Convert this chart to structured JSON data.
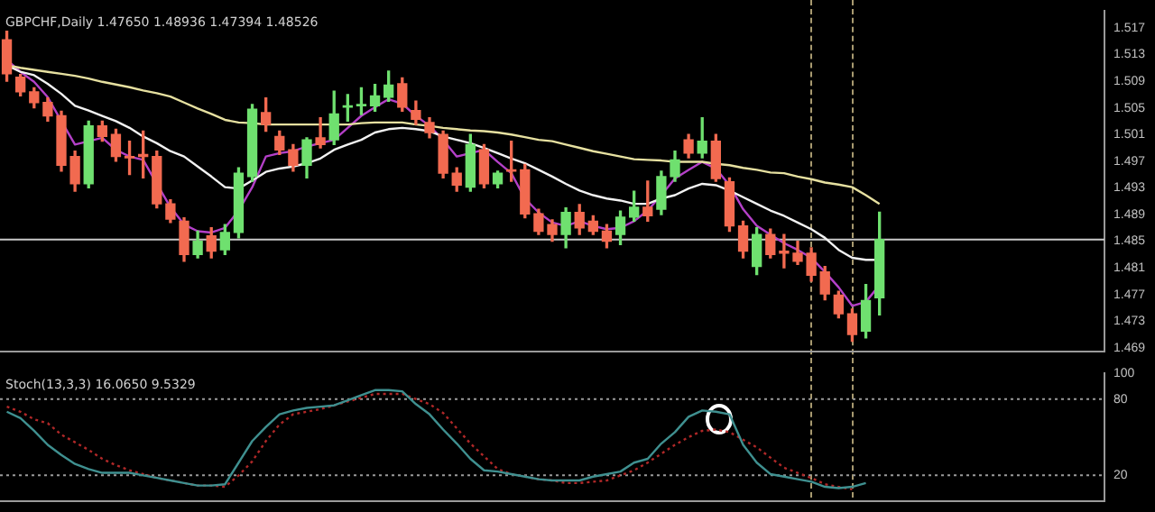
{
  "chart_data": [
    {
      "type": "candlestick",
      "title": "GBPCHF,Daily 1.47650 1.48936 1.47394 1.48526",
      "categories": [
        null,
        null,
        null,
        null,
        null,
        null,
        null,
        null,
        null,
        null,
        null,
        null,
        null,
        null,
        null,
        null,
        null,
        null,
        null,
        null,
        null,
        null,
        null,
        null,
        null,
        null,
        null,
        null,
        null,
        null,
        null,
        null,
        null,
        null,
        null,
        null,
        null,
        null,
        null,
        null,
        null,
        null,
        null,
        null,
        null,
        null,
        null,
        null,
        null,
        null,
        null,
        null,
        null,
        null,
        null,
        null,
        null,
        null,
        null,
        null,
        null,
        null,
        null,
        null,
        null,
        null,
        null,
        null,
        null,
        null,
        null,
        null,
        null,
        null,
        null,
        null,
        null,
        null,
        null,
        null,
        null
      ],
      "ohlc": [
        [
          1.5152,
          1.5165,
          1.509,
          1.5101
        ],
        [
          1.5096,
          1.51,
          1.5068,
          1.5074
        ],
        [
          1.5074,
          1.508,
          1.505,
          1.5058
        ],
        [
          1.5058,
          1.5065,
          1.503,
          1.5038
        ],
        [
          1.5038,
          1.5045,
          1.4955,
          1.4964
        ],
        [
          1.4977,
          1.4985,
          1.4925,
          1.4936
        ],
        [
          1.4936,
          1.503,
          1.493,
          1.5023
        ],
        [
          1.5023,
          1.503,
          1.5,
          1.5007
        ],
        [
          1.501,
          1.5018,
          1.497,
          1.4977
        ],
        [
          1.4977,
          1.5,
          1.495,
          1.4975
        ],
        [
          1.498,
          1.5015,
          1.4945,
          1.4977
        ],
        [
          1.4977,
          1.4985,
          1.49,
          1.4906
        ],
        [
          1.4906,
          1.4912,
          1.4878,
          1.4883
        ],
        [
          1.488,
          1.4885,
          1.482,
          1.483
        ],
        [
          1.483,
          1.4865,
          1.4825,
          1.485
        ],
        [
          1.4858,
          1.487,
          1.4825,
          1.4835
        ],
        [
          1.4837,
          1.4875,
          1.483,
          1.4863
        ],
        [
          1.4863,
          1.496,
          1.4855,
          1.4952
        ],
        [
          1.4947,
          1.5055,
          1.494,
          1.5048
        ],
        [
          1.5043,
          1.5065,
          1.5015,
          1.5025
        ],
        [
          1.5007,
          1.5015,
          1.498,
          1.4987
        ],
        [
          1.4987,
          1.4995,
          1.4955,
          1.4964
        ],
        [
          1.4964,
          1.5005,
          1.4945,
          1.5002
        ],
        [
          1.5005,
          1.5035,
          1.499,
          1.4995
        ],
        [
          1.5002,
          1.5075,
          1.4995,
          1.5041
        ],
        [
          1.5051,
          1.507,
          1.503,
          1.5053
        ],
        [
          1.5053,
          1.508,
          1.504,
          1.5055
        ],
        [
          1.5053,
          1.5085,
          1.5045,
          1.5068
        ],
        [
          1.5066,
          1.5105,
          1.506,
          1.5084
        ],
        [
          1.5086,
          1.5095,
          1.5045,
          1.5051
        ],
        [
          1.5046,
          1.506,
          1.5025,
          1.5033
        ],
        [
          1.5028,
          1.5035,
          1.5005,
          1.5013
        ],
        [
          1.501,
          1.5015,
          1.4945,
          1.4952
        ],
        [
          1.4952,
          1.496,
          1.4925,
          1.4934
        ],
        [
          1.4931,
          1.501,
          1.4925,
          1.4995
        ],
        [
          1.4987,
          1.4995,
          1.493,
          1.4936
        ],
        [
          1.4936,
          1.4955,
          1.493,
          1.4952
        ],
        [
          1.4957,
          1.5,
          1.494,
          1.4955
        ],
        [
          1.4957,
          1.4965,
          1.4885,
          1.4891
        ],
        [
          1.4891,
          1.4898,
          1.486,
          1.4865
        ],
        [
          1.4875,
          1.4882,
          1.485,
          1.486
        ],
        [
          1.486,
          1.49,
          1.484,
          1.4893
        ],
        [
          1.4893,
          1.4905,
          1.486,
          1.487
        ],
        [
          1.488,
          1.4888,
          1.486,
          1.4865
        ],
        [
          1.4865,
          1.4875,
          1.484,
          1.485
        ],
        [
          1.486,
          1.4895,
          1.4845,
          1.4886
        ],
        [
          1.4886,
          1.4925,
          1.488,
          1.4901
        ],
        [
          1.4901,
          1.494,
          1.488,
          1.4888
        ],
        [
          1.4898,
          1.4955,
          1.489,
          1.4947
        ],
        [
          1.4947,
          1.4985,
          1.494,
          1.4972
        ],
        [
          1.5002,
          1.501,
          1.4975,
          1.4982
        ],
        [
          1.4982,
          1.5035,
          1.4975,
          1.5
        ],
        [
          1.5,
          1.501,
          1.494,
          1.4944
        ],
        [
          1.4939,
          1.4945,
          1.4865,
          1.4873
        ],
        [
          1.4873,
          1.488,
          1.4825,
          1.4835
        ],
        [
          1.4812,
          1.487,
          1.48,
          1.486
        ],
        [
          1.486,
          1.4868,
          1.4825,
          1.483
        ],
        [
          1.4835,
          1.486,
          1.481,
          1.4832
        ],
        [
          1.4832,
          1.485,
          1.4815,
          1.482
        ],
        [
          1.4832,
          1.484,
          1.479,
          1.4799
        ],
        [
          1.4804,
          1.4812,
          1.4762,
          1.4771
        ],
        [
          1.4769,
          1.4775,
          1.4735,
          1.4741
        ],
        [
          1.4741,
          1.4748,
          1.47,
          1.471
        ],
        [
          1.4715,
          1.4785,
          1.4705,
          1.4761
        ],
        [
          1.4765,
          1.48936,
          1.47394,
          1.48526
        ],
        null,
        null,
        null,
        null,
        null,
        null,
        null,
        null,
        null,
        null,
        null,
        null,
        null,
        null,
        null,
        null
      ],
      "series": [
        {
          "type": "line",
          "color": "#e6e0a0",
          "values": [
            1.5114,
            1.511,
            1.5107,
            1.5104,
            1.5101,
            1.5098,
            1.5094,
            1.5089,
            1.5085,
            1.5081,
            1.5076,
            1.5072,
            1.5067,
            1.5058,
            1.5049,
            1.5041,
            1.5032,
            1.5028,
            1.5027,
            1.5025,
            1.5025,
            1.5025,
            1.5025,
            1.5025,
            1.5025,
            1.5025,
            1.5027,
            1.5028,
            1.5028,
            1.5028,
            1.5025,
            1.5023,
            1.502,
            1.5018,
            1.5016,
            1.5015,
            1.5013,
            1.501,
            1.5006,
            1.5002,
            1.5,
            1.4995,
            1.499,
            1.4985,
            1.4981,
            1.4977,
            1.4973,
            1.4972,
            1.4971,
            1.4969,
            1.4969,
            1.4969,
            1.4966,
            1.4964,
            1.496,
            1.4957,
            1.4953,
            1.4952,
            1.4947,
            1.4943,
            1.4938,
            1.4935,
            1.4931,
            1.4919,
            1.4906,
            null,
            null,
            null,
            null,
            null,
            null,
            null,
            null,
            null,
            null,
            null,
            null,
            null,
            null,
            null,
            null
          ]
        },
        {
          "type": "line",
          "color": "#f2f2f2",
          "values": [
            1.5114,
            1.5104,
            1.5099,
            1.5086,
            1.5071,
            1.5053,
            1.5046,
            1.5038,
            1.503,
            1.502,
            1.5007,
            1.4997,
            1.4985,
            1.4977,
            1.4962,
            1.4947,
            1.4931,
            1.4929,
            1.4941,
            1.4954,
            1.4959,
            1.4962,
            1.4967,
            1.4974,
            1.4987,
            1.4995,
            1.5002,
            1.5013,
            1.5018,
            1.502,
            1.5018,
            1.5015,
            1.5007,
            1.5002,
            1.4997,
            1.499,
            1.4982,
            1.4974,
            1.4967,
            1.4957,
            1.4947,
            1.4936,
            1.4926,
            1.4919,
            1.4914,
            1.4911,
            1.4906,
            1.4906,
            1.4914,
            1.4919,
            1.4929,
            1.4936,
            1.4934,
            1.4926,
            1.4916,
            1.4906,
            1.4896,
            1.4888,
            1.4878,
            1.4868,
            1.4855,
            1.4837,
            1.4825,
            1.4822,
            1.4822,
            null,
            null,
            null,
            null,
            null,
            null,
            null,
            null,
            null,
            null,
            null,
            null,
            null,
            null,
            null,
            null
          ]
        },
        {
          "type": "line",
          "color": "#b440c8",
          "values": [
            1.5122,
            1.5104,
            1.5089,
            1.5066,
            1.503,
            1.4995,
            1.5,
            1.5005,
            1.4987,
            1.4977,
            1.4972,
            1.4936,
            1.4901,
            1.4875,
            1.4865,
            1.4863,
            1.487,
            1.4896,
            1.4931,
            1.4977,
            1.4982,
            1.4985,
            1.4992,
            1.4997,
            1.5002,
            1.502,
            1.5038,
            1.5051,
            1.5063,
            1.5056,
            1.5038,
            1.5023,
            1.5002,
            1.4977,
            1.4982,
            1.4987,
            1.4969,
            1.4952,
            1.4914,
            1.4893,
            1.4878,
            1.4873,
            1.488,
            1.4873,
            1.4868,
            1.487,
            1.488,
            1.4896,
            1.4919,
            1.4944,
            1.4957,
            1.4969,
            1.4959,
            1.4934,
            1.4898,
            1.4873,
            1.486,
            1.4847,
            1.4837,
            1.4825,
            1.4804,
            1.4781,
            1.4753,
            1.4759,
            1.4784,
            null,
            null,
            null,
            null,
            null,
            null,
            null,
            null,
            null,
            null,
            null,
            null,
            null,
            null,
            null,
            null
          ]
        }
      ],
      "ylim": [
        1.4685,
        1.5195
      ],
      "yticks": [
        1.469,
        1.473,
        1.477,
        1.481,
        1.485,
        1.489,
        1.493,
        1.497,
        1.501,
        1.505,
        1.509,
        1.513,
        1.517
      ],
      "ref_lines": [
        {
          "axis": "y",
          "value": 1.48526,
          "color": "#c8c8c8"
        }
      ],
      "tick_labels": "y",
      "legend": false,
      "grid": false,
      "marker": "none"
    },
    {
      "type": "line",
      "title": "Stoch(13,3,3) 16.0650 9.5329",
      "categories": [
        null,
        null,
        null,
        null,
        null,
        null,
        null,
        null,
        null,
        null,
        null,
        null,
        null,
        null,
        null,
        null,
        null,
        null,
        null,
        null,
        null,
        null,
        null,
        null,
        null,
        null,
        null,
        null,
        null,
        null,
        null,
        null,
        null,
        null,
        null,
        null,
        null,
        null,
        null,
        null,
        null,
        null,
        null,
        null,
        null,
        null,
        null,
        null,
        null,
        null,
        null,
        null,
        null,
        null,
        null,
        null,
        null,
        null,
        null,
        null,
        null,
        null,
        null,
        null,
        null,
        null,
        null,
        null,
        null,
        null,
        null,
        null,
        null,
        null,
        null,
        null,
        null,
        null,
        null,
        null,
        null
      ],
      "series": [
        {
          "color": "#3f9090",
          "values": [
            70,
            65,
            55,
            44,
            36,
            29,
            25,
            22,
            22,
            22,
            20,
            18,
            16,
            14,
            12,
            12,
            13,
            30,
            47,
            58,
            68,
            71,
            73,
            74,
            75,
            79,
            83,
            87,
            87,
            86,
            76,
            68,
            56,
            45,
            33,
            24,
            23,
            21,
            19,
            17,
            16,
            16,
            16,
            19,
            21,
            23,
            30,
            33,
            45,
            54,
            66,
            71,
            70,
            68,
            44,
            30,
            21,
            19,
            17,
            15,
            11,
            10,
            11,
            14,
            null,
            null,
            null,
            null,
            null,
            null,
            null,
            null,
            null,
            null,
            null,
            null,
            null,
            null,
            null,
            null,
            null
          ]
        },
        {
          "color": "#b02828",
          "line_style": "dotted",
          "values": [
            74,
            70,
            64,
            61,
            52,
            46,
            40,
            33,
            28,
            24,
            21,
            18,
            16,
            14,
            12,
            12,
            11,
            20,
            31,
            47,
            60,
            68,
            70,
            72,
            75,
            78,
            81,
            84,
            84,
            84,
            80,
            76,
            69,
            57,
            45,
            35,
            25,
            21,
            19,
            17,
            16,
            14,
            14,
            15,
            16,
            20,
            24,
            30,
            37,
            44,
            50,
            55,
            56,
            54,
            48,
            42,
            34,
            26,
            22,
            18,
            13,
            11,
            9,
            null,
            null,
            null,
            null,
            null,
            null,
            null,
            null,
            null,
            null,
            null,
            null,
            null,
            null,
            null,
            null,
            null,
            null
          ]
        }
      ],
      "ylim": [
        0,
        100
      ],
      "yticks": [
        20,
        80,
        100
      ],
      "ref_lines": [
        {
          "axis": "y",
          "value": 80,
          "color": "#9a9a9a",
          "line_style": "dotted"
        },
        {
          "axis": "y",
          "value": 20,
          "color": "#9a9a9a",
          "line_style": "dotted"
        }
      ],
      "tick_labels": "y",
      "legend": false,
      "grid": false,
      "marker": "none"
    }
  ]
}
